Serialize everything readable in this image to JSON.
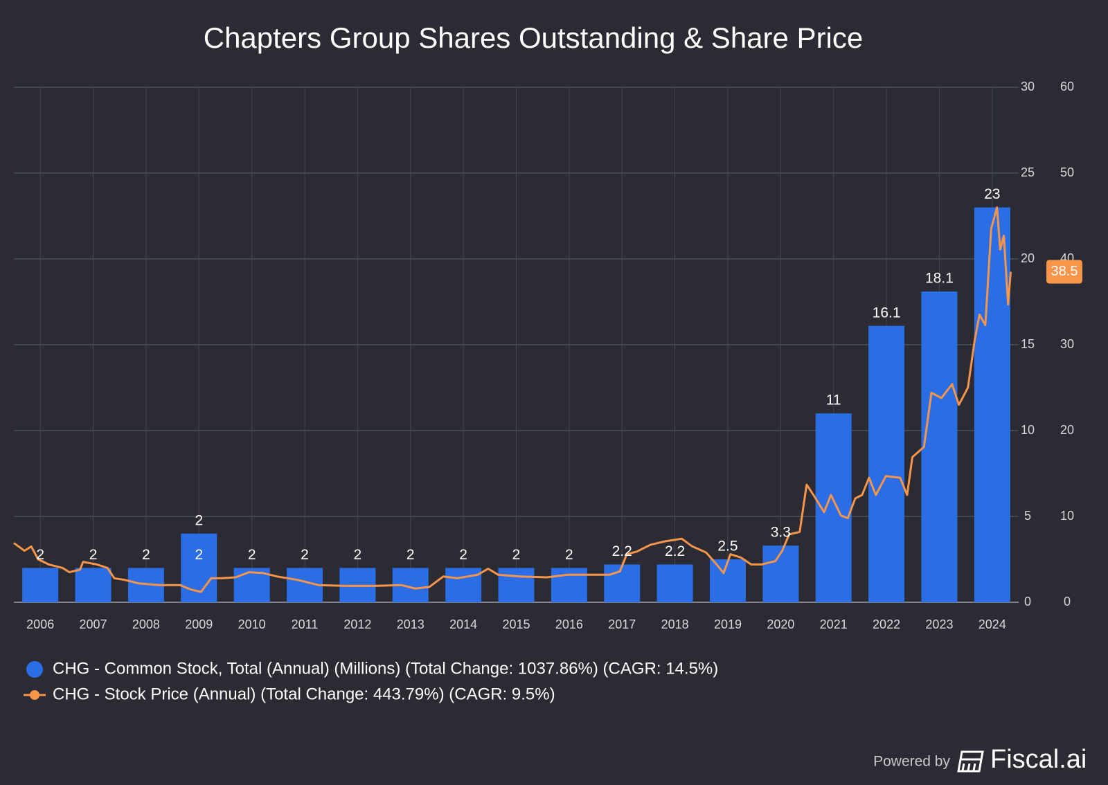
{
  "chart_data": {
    "type": "bar",
    "title": "Chapters Group Shares Outstanding & Share Price",
    "categories": [
      "2006",
      "2007",
      "2008",
      "2009",
      "2010",
      "2011",
      "2012",
      "2013",
      "2014",
      "2015",
      "2016",
      "2017",
      "2018",
      "2019",
      "2020",
      "2021",
      "2022",
      "2023",
      "2024"
    ],
    "xlim": [
      2005.5,
      2024.5
    ],
    "ylim": [
      0,
      30
    ],
    "yticks": [
      0,
      5,
      10,
      15,
      20,
      25,
      30
    ],
    "y2lim": [
      0,
      60
    ],
    "y2ticks": [
      0,
      10,
      20,
      30,
      40,
      50,
      60
    ],
    "grid": true,
    "series": [
      {
        "type": "bar",
        "name": "CHG - Common Stock, Total (Annual) (Millions) (Total Change: 1037.86%) (CAGR: 14.5%)",
        "color": "#2b6de5",
        "values": [
          2,
          2,
          2,
          2,
          2,
          2,
          2,
          2,
          2,
          2,
          2,
          2.2,
          2.2,
          2.5,
          3.3,
          11,
          16.1,
          18.1,
          23
        ],
        "stacked_values": [
          null,
          null,
          null,
          2,
          null,
          null,
          null,
          null,
          null,
          null,
          null,
          null,
          null,
          null,
          null,
          null,
          null,
          null,
          null
        ]
      },
      {
        "type": "line",
        "axis": "y2",
        "name": "CHG - Stock Price (Annual) (Total Change: 443.79%) (CAGR: 9.5%)",
        "color": "#f7954a",
        "x": [
          2005.5,
          2005.7,
          2005.83,
          2005.96,
          2006.16,
          2006.42,
          2006.55,
          2006.75,
          2006.81,
          2007.07,
          2007.27,
          2007.4,
          2007.6,
          2007.86,
          2008.25,
          2008.64,
          2008.84,
          2009.04,
          2009.23,
          2009.43,
          2009.69,
          2009.95,
          2010.21,
          2010.48,
          2010.87,
          2011.26,
          2011.79,
          2012.31,
          2012.83,
          2013.09,
          2013.36,
          2013.62,
          2013.88,
          2014.27,
          2014.47,
          2014.66,
          2015.06,
          2015.58,
          2015.97,
          2016.37,
          2016.76,
          2016.96,
          2017.09,
          2017.28,
          2017.54,
          2017.81,
          2018.13,
          2018.33,
          2018.59,
          2018.79,
          2018.92,
          2019.05,
          2019.25,
          2019.44,
          2019.64,
          2019.9,
          2020.03,
          2020.16,
          2020.36,
          2020.49,
          2020.62,
          2020.82,
          2020.95,
          2021.14,
          2021.27,
          2021.41,
          2021.54,
          2021.67,
          2021.8,
          2021.99,
          2022.26,
          2022.39,
          2022.49,
          2022.71,
          2022.85,
          2023.04,
          2023.24,
          2023.37,
          2023.54,
          2023.67,
          2023.76,
          2023.87,
          2023.98,
          2024.09,
          2024.15,
          2024.22,
          2024.3,
          2024.35
        ],
        "values": [
          6.9,
          6.0,
          6.5,
          5.0,
          4.4,
          4.0,
          3.5,
          3.8,
          4.7,
          4.4,
          4.0,
          2.8,
          2.6,
          2.2,
          2.0,
          2.0,
          1.5,
          1.2,
          2.8,
          2.8,
          2.9,
          3.5,
          3.4,
          3.0,
          2.6,
          2.0,
          1.9,
          1.9,
          2.0,
          1.6,
          1.8,
          3.0,
          2.8,
          3.2,
          3.9,
          3.2,
          3.0,
          2.9,
          3.2,
          3.2,
          3.2,
          3.6,
          5.6,
          5.9,
          6.7,
          7.1,
          7.4,
          6.5,
          5.8,
          4.4,
          3.4,
          5.6,
          5.2,
          4.4,
          4.4,
          4.8,
          6.0,
          7.9,
          8.2,
          13.7,
          12.5,
          10.5,
          12.5,
          10.1,
          9.8,
          12.1,
          12.5,
          14.5,
          12.5,
          14.7,
          14.5,
          12.5,
          16.9,
          18.1,
          24.4,
          23.8,
          25.4,
          23.0,
          25.0,
          30.6,
          33.5,
          32.3,
          43.5,
          46.0,
          41.1,
          42.7,
          34.7,
          38.5
        ]
      }
    ]
  },
  "footer": {
    "powered_by": "Powered by",
    "brand": "Fiscal.ai"
  }
}
